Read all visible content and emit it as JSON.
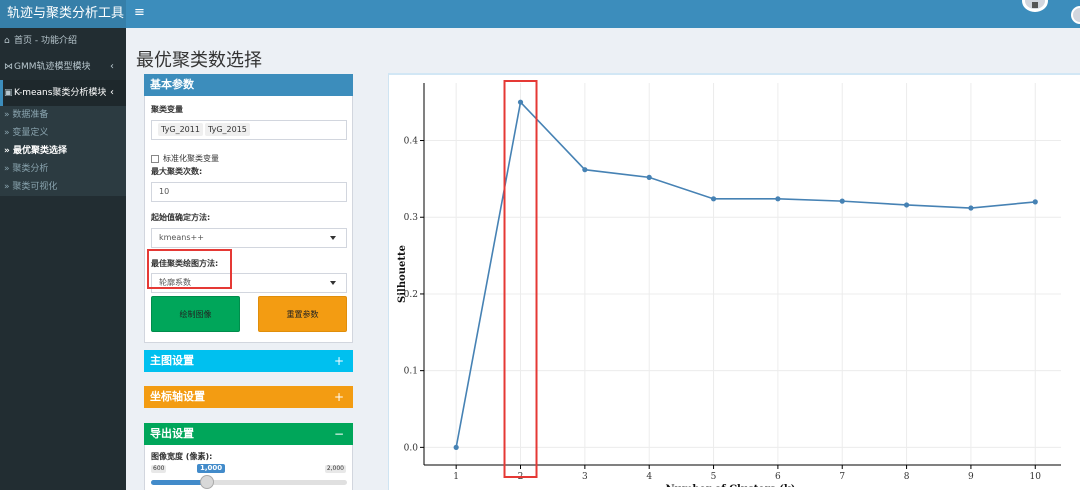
{
  "app": {
    "title": "轨迹与聚类分析工具",
    "menu_toggle": "≡"
  },
  "sidebar": {
    "items": [
      {
        "icon": "home-icon",
        "glyph": "⌂",
        "label": "首页 - 功能介绍"
      },
      {
        "icon": "sitemap-icon",
        "glyph": "⋈",
        "label": "GMM轨迹模型模块",
        "chevron": "‹"
      },
      {
        "icon": "image-icon",
        "glyph": "▣",
        "label": "K-means聚类分析模块",
        "chevron": "‹"
      }
    ],
    "subitems": [
      {
        "label": "» 数据准备"
      },
      {
        "label": "» 变量定义"
      },
      {
        "label": "» 最优聚类选择",
        "active": true
      },
      {
        "label": "» 聚类分析"
      },
      {
        "label": "» 聚类可视化"
      }
    ]
  },
  "page": {
    "title": "最优聚类数选择"
  },
  "basic_params": {
    "header": "基本参数",
    "cluster_vars_label": "聚类变量",
    "cluster_vars": [
      "TyG_2011",
      "TyG_2015"
    ],
    "standardize_label": "标准化聚类变量",
    "max_k_label": "最大聚类次数:",
    "max_k_value": "10",
    "init_label": "起始值确定方法:",
    "init_value": "kmeans++",
    "plot_method_label": "最佳聚类绘图方法:",
    "plot_method_value": "轮廓系数",
    "draw_button": "绘制图像",
    "reset_button": "重置参数"
  },
  "main_plot_settings": {
    "header": "主图设置",
    "tool": "+"
  },
  "axis_settings": {
    "header": "坐标轴设置",
    "tool": "+"
  },
  "export_settings": {
    "header": "导出设置",
    "tool": "−",
    "width_label": "图像宽度 (像素):",
    "slider_min": "600",
    "slider_max": "2,000",
    "slider_value": "1,000",
    "slider_fraction": 0.2857
  },
  "colors": {
    "header_blue": "#3c8dbc",
    "sidebar_dark": "#222d32",
    "box_primary": "#3c8dbc",
    "box_info": "#00c0ef",
    "box_warning": "#f39c12",
    "box_success": "#00a65a",
    "line_color": "#4682b4",
    "highlight_red": "#e53935"
  },
  "chart_data": {
    "type": "line",
    "title": "",
    "xlabel": "Number of Clusters (k)",
    "ylabel": "Silhouette",
    "x": [
      1,
      2,
      3,
      4,
      5,
      6,
      7,
      8,
      9,
      10
    ],
    "values": [
      0.0,
      0.45,
      0.362,
      0.352,
      0.324,
      0.324,
      0.321,
      0.316,
      0.312,
      0.32
    ],
    "xticks": [
      "1",
      "2",
      "3",
      "4",
      "5",
      "6",
      "7",
      "8",
      "9",
      "10"
    ],
    "yticks": [
      "0.0",
      "0.1",
      "0.2",
      "0.3",
      "0.4"
    ],
    "ylim": [
      -0.023,
      0.475
    ],
    "xlim": [
      0.5,
      10.4
    ],
    "grid": true,
    "highlight_k": 2
  }
}
